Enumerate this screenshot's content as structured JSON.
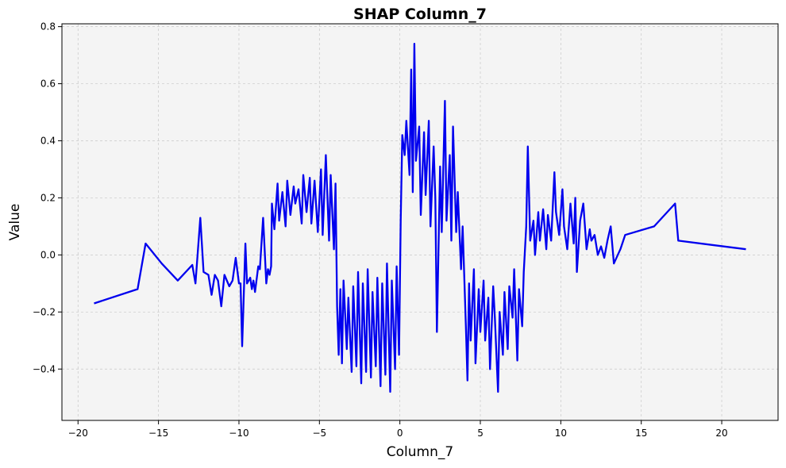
{
  "chart_data": {
    "type": "line",
    "title": "SHAP Column_7",
    "xlabel": "Column_7",
    "ylabel": "Value",
    "xlim": [
      -21,
      23.5
    ],
    "ylim": [
      -0.58,
      0.81
    ],
    "xticks": [
      -20,
      -15,
      -10,
      -5,
      0,
      5,
      10,
      15,
      20
    ],
    "xtick_labels": [
      "−20",
      "−15",
      "−10",
      "−5",
      "0",
      "5",
      "10",
      "15",
      "20"
    ],
    "yticks": [
      -0.4,
      -0.2,
      0.0,
      0.2,
      0.4,
      0.6,
      0.8
    ],
    "ytick_labels": [
      "−0.4",
      "−0.2",
      "0.0",
      "0.2",
      "0.4",
      "0.6",
      "0.8"
    ],
    "grid": true,
    "colors": {
      "line": "#0000ee",
      "plot_background": "#f4f4f4",
      "grid": "#c8c8c8"
    },
    "series": [
      {
        "x": [
          -19.0,
          -16.3,
          -15.8,
          -14.8,
          -13.8,
          -12.9,
          -12.7,
          -12.4,
          -12.2,
          -11.9,
          -11.7,
          -11.5,
          -11.3,
          -11.1,
          -10.9,
          -10.6,
          -10.4,
          -10.2,
          -10.0,
          -9.9,
          -9.8,
          -9.6,
          -9.5,
          -9.3,
          -9.2,
          -9.1,
          -9.0,
          -8.8,
          -8.7,
          -8.5,
          -8.3,
          -8.2,
          -8.1,
          -8.0,
          -7.95,
          -7.8,
          -7.6,
          -7.5,
          -7.3,
          -7.1,
          -7.0,
          -6.8,
          -6.6,
          -6.5,
          -6.3,
          -6.1,
          -6.0,
          -5.8,
          -5.6,
          -5.5,
          -5.3,
          -5.1,
          -4.9,
          -4.8,
          -4.6,
          -4.4,
          -4.3,
          -4.1,
          -4.0,
          -3.9,
          -3.8,
          -3.7,
          -3.6,
          -3.5,
          -3.3,
          -3.2,
          -3.0,
          -2.9,
          -2.7,
          -2.6,
          -2.4,
          -2.3,
          -2.1,
          -2.0,
          -1.8,
          -1.7,
          -1.5,
          -1.4,
          -1.2,
          -1.1,
          -0.9,
          -0.8,
          -0.6,
          -0.5,
          -0.3,
          -0.2,
          -0.05,
          0.05,
          0.15,
          0.3,
          0.4,
          0.6,
          0.7,
          0.8,
          0.9,
          1.0,
          1.2,
          1.3,
          1.5,
          1.6,
          1.8,
          1.9,
          2.1,
          2.2,
          2.3,
          2.5,
          2.6,
          2.8,
          2.9,
          3.1,
          3.2,
          3.3,
          3.5,
          3.6,
          3.8,
          3.9,
          4.1,
          4.2,
          4.3,
          4.4,
          4.6,
          4.7,
          4.9,
          5.0,
          5.2,
          5.3,
          5.5,
          5.6,
          5.8,
          5.9,
          6.1,
          6.2,
          6.4,
          6.5,
          6.7,
          6.8,
          7.0,
          7.1,
          7.3,
          7.4,
          7.6,
          7.7,
          7.85,
          7.95,
          8.1,
          8.3,
          8.4,
          8.6,
          8.7,
          8.9,
          9.1,
          9.2,
          9.4,
          9.6,
          9.7,
          9.9,
          10.1,
          10.2,
          10.4,
          10.6,
          10.8,
          10.9,
          11.0,
          11.2,
          11.4,
          11.6,
          11.8,
          11.9,
          12.1,
          12.3,
          12.5,
          12.7,
          12.9,
          13.1,
          13.3,
          13.7,
          14.0,
          15.8,
          17.1,
          17.3,
          21.5
        ],
        "y": [
          -0.17,
          -0.12,
          0.04,
          -0.03,
          -0.09,
          -0.035,
          -0.1,
          0.13,
          -0.06,
          -0.07,
          -0.14,
          -0.07,
          -0.09,
          -0.18,
          -0.07,
          -0.11,
          -0.09,
          -0.01,
          -0.1,
          -0.1,
          -0.32,
          0.04,
          -0.1,
          -0.08,
          -0.12,
          -0.09,
          -0.13,
          -0.04,
          -0.05,
          0.13,
          -0.1,
          -0.05,
          -0.07,
          -0.04,
          0.18,
          0.09,
          0.25,
          0.12,
          0.22,
          0.1,
          0.26,
          0.14,
          0.24,
          0.18,
          0.23,
          0.11,
          0.28,
          0.15,
          0.27,
          0.11,
          0.26,
          0.08,
          0.3,
          0.07,
          0.35,
          0.05,
          0.28,
          0.02,
          0.25,
          -0.18,
          -0.35,
          -0.12,
          -0.38,
          -0.09,
          -0.33,
          -0.15,
          -0.41,
          -0.11,
          -0.39,
          -0.06,
          -0.45,
          -0.1,
          -0.41,
          -0.05,
          -0.43,
          -0.13,
          -0.39,
          -0.08,
          -0.46,
          -0.1,
          -0.42,
          -0.03,
          -0.48,
          -0.09,
          -0.4,
          -0.04,
          -0.35,
          0.12,
          0.42,
          0.35,
          0.47,
          0.28,
          0.65,
          0.22,
          0.74,
          0.33,
          0.45,
          0.14,
          0.43,
          0.21,
          0.47,
          0.1,
          0.38,
          0.2,
          -0.27,
          0.31,
          0.08,
          0.54,
          0.12,
          0.35,
          0.05,
          0.45,
          0.08,
          0.22,
          -0.05,
          0.1,
          -0.25,
          -0.44,
          -0.1,
          -0.3,
          -0.05,
          -0.38,
          -0.12,
          -0.27,
          -0.09,
          -0.3,
          -0.15,
          -0.4,
          -0.11,
          -0.22,
          -0.48,
          -0.2,
          -0.35,
          -0.13,
          -0.33,
          -0.11,
          -0.22,
          -0.05,
          -0.37,
          -0.12,
          -0.25,
          -0.06,
          0.1,
          0.38,
          0.05,
          0.12,
          0.0,
          0.15,
          0.05,
          0.16,
          0.02,
          0.14,
          0.05,
          0.29,
          0.15,
          0.07,
          0.23,
          0.1,
          0.02,
          0.18,
          0.04,
          0.2,
          -0.06,
          0.12,
          0.18,
          0.02,
          0.09,
          0.05,
          0.07,
          0.0,
          0.03,
          -0.01,
          0.05,
          0.1,
          -0.03,
          0.02,
          0.07,
          0.1,
          0.18,
          0.05,
          0.02
        ]
      }
    ]
  }
}
